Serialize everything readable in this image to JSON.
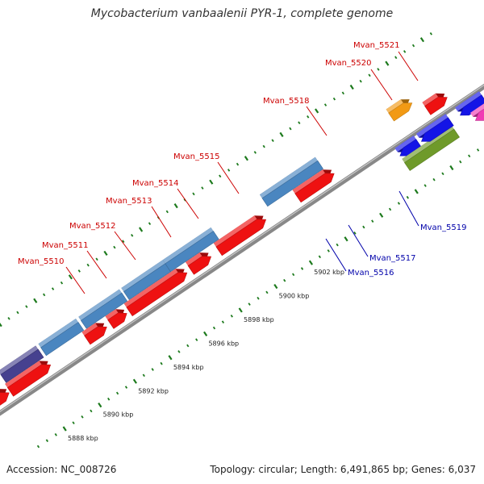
{
  "title": "Mycobacterium vanbaalenii PYR-1, complete genome",
  "footer": {
    "accession": "Accession: NC_008726",
    "summary": "Topology: circular; Length: 6,491,865 bp; Genes: 6,037"
  },
  "colors": {
    "backbone": "#888888",
    "forward_label": "#cc0000",
    "reverse_label": "#0000aa",
    "tick": "#1d7a1d",
    "red": "#ee1111",
    "steel_blue": "#4a86c0",
    "indigo": "#46418f",
    "olive": "#6f9a2a",
    "orange": "#f29a14",
    "blue": "#1414e6",
    "magenta": "#f03cb4",
    "silver": "#cfcfcf",
    "green": "#3ccc3c"
  },
  "kbp_ticks": [
    {
      "text": "5888 kbp"
    },
    {
      "text": "5890 kbp"
    },
    {
      "text": "5892 kbp"
    },
    {
      "text": "5894 kbp"
    },
    {
      "text": "5896 kbp"
    },
    {
      "text": "5898 kbp"
    },
    {
      "text": "5900 kbp"
    },
    {
      "text": "5902 kbp"
    }
  ],
  "gene_labels": [
    {
      "text": "Mvan_5510",
      "strand": "forward"
    },
    {
      "text": "Mvan_5511",
      "strand": "forward"
    },
    {
      "text": "Mvan_5512",
      "strand": "forward"
    },
    {
      "text": "Mvan_5513",
      "strand": "forward"
    },
    {
      "text": "Mvan_5514",
      "strand": "forward"
    },
    {
      "text": "Mvan_5515",
      "strand": "forward"
    },
    {
      "text": "Mvan_5518",
      "strand": "forward"
    },
    {
      "text": "Mvan_5520",
      "strand": "forward"
    },
    {
      "text": "Mvan_5521",
      "strand": "forward"
    },
    {
      "text": "Mvan_5519",
      "strand": "reverse"
    },
    {
      "text": "Mvan_5517",
      "strand": "reverse"
    },
    {
      "text": "Mvan_5516",
      "strand": "reverse"
    }
  ]
}
